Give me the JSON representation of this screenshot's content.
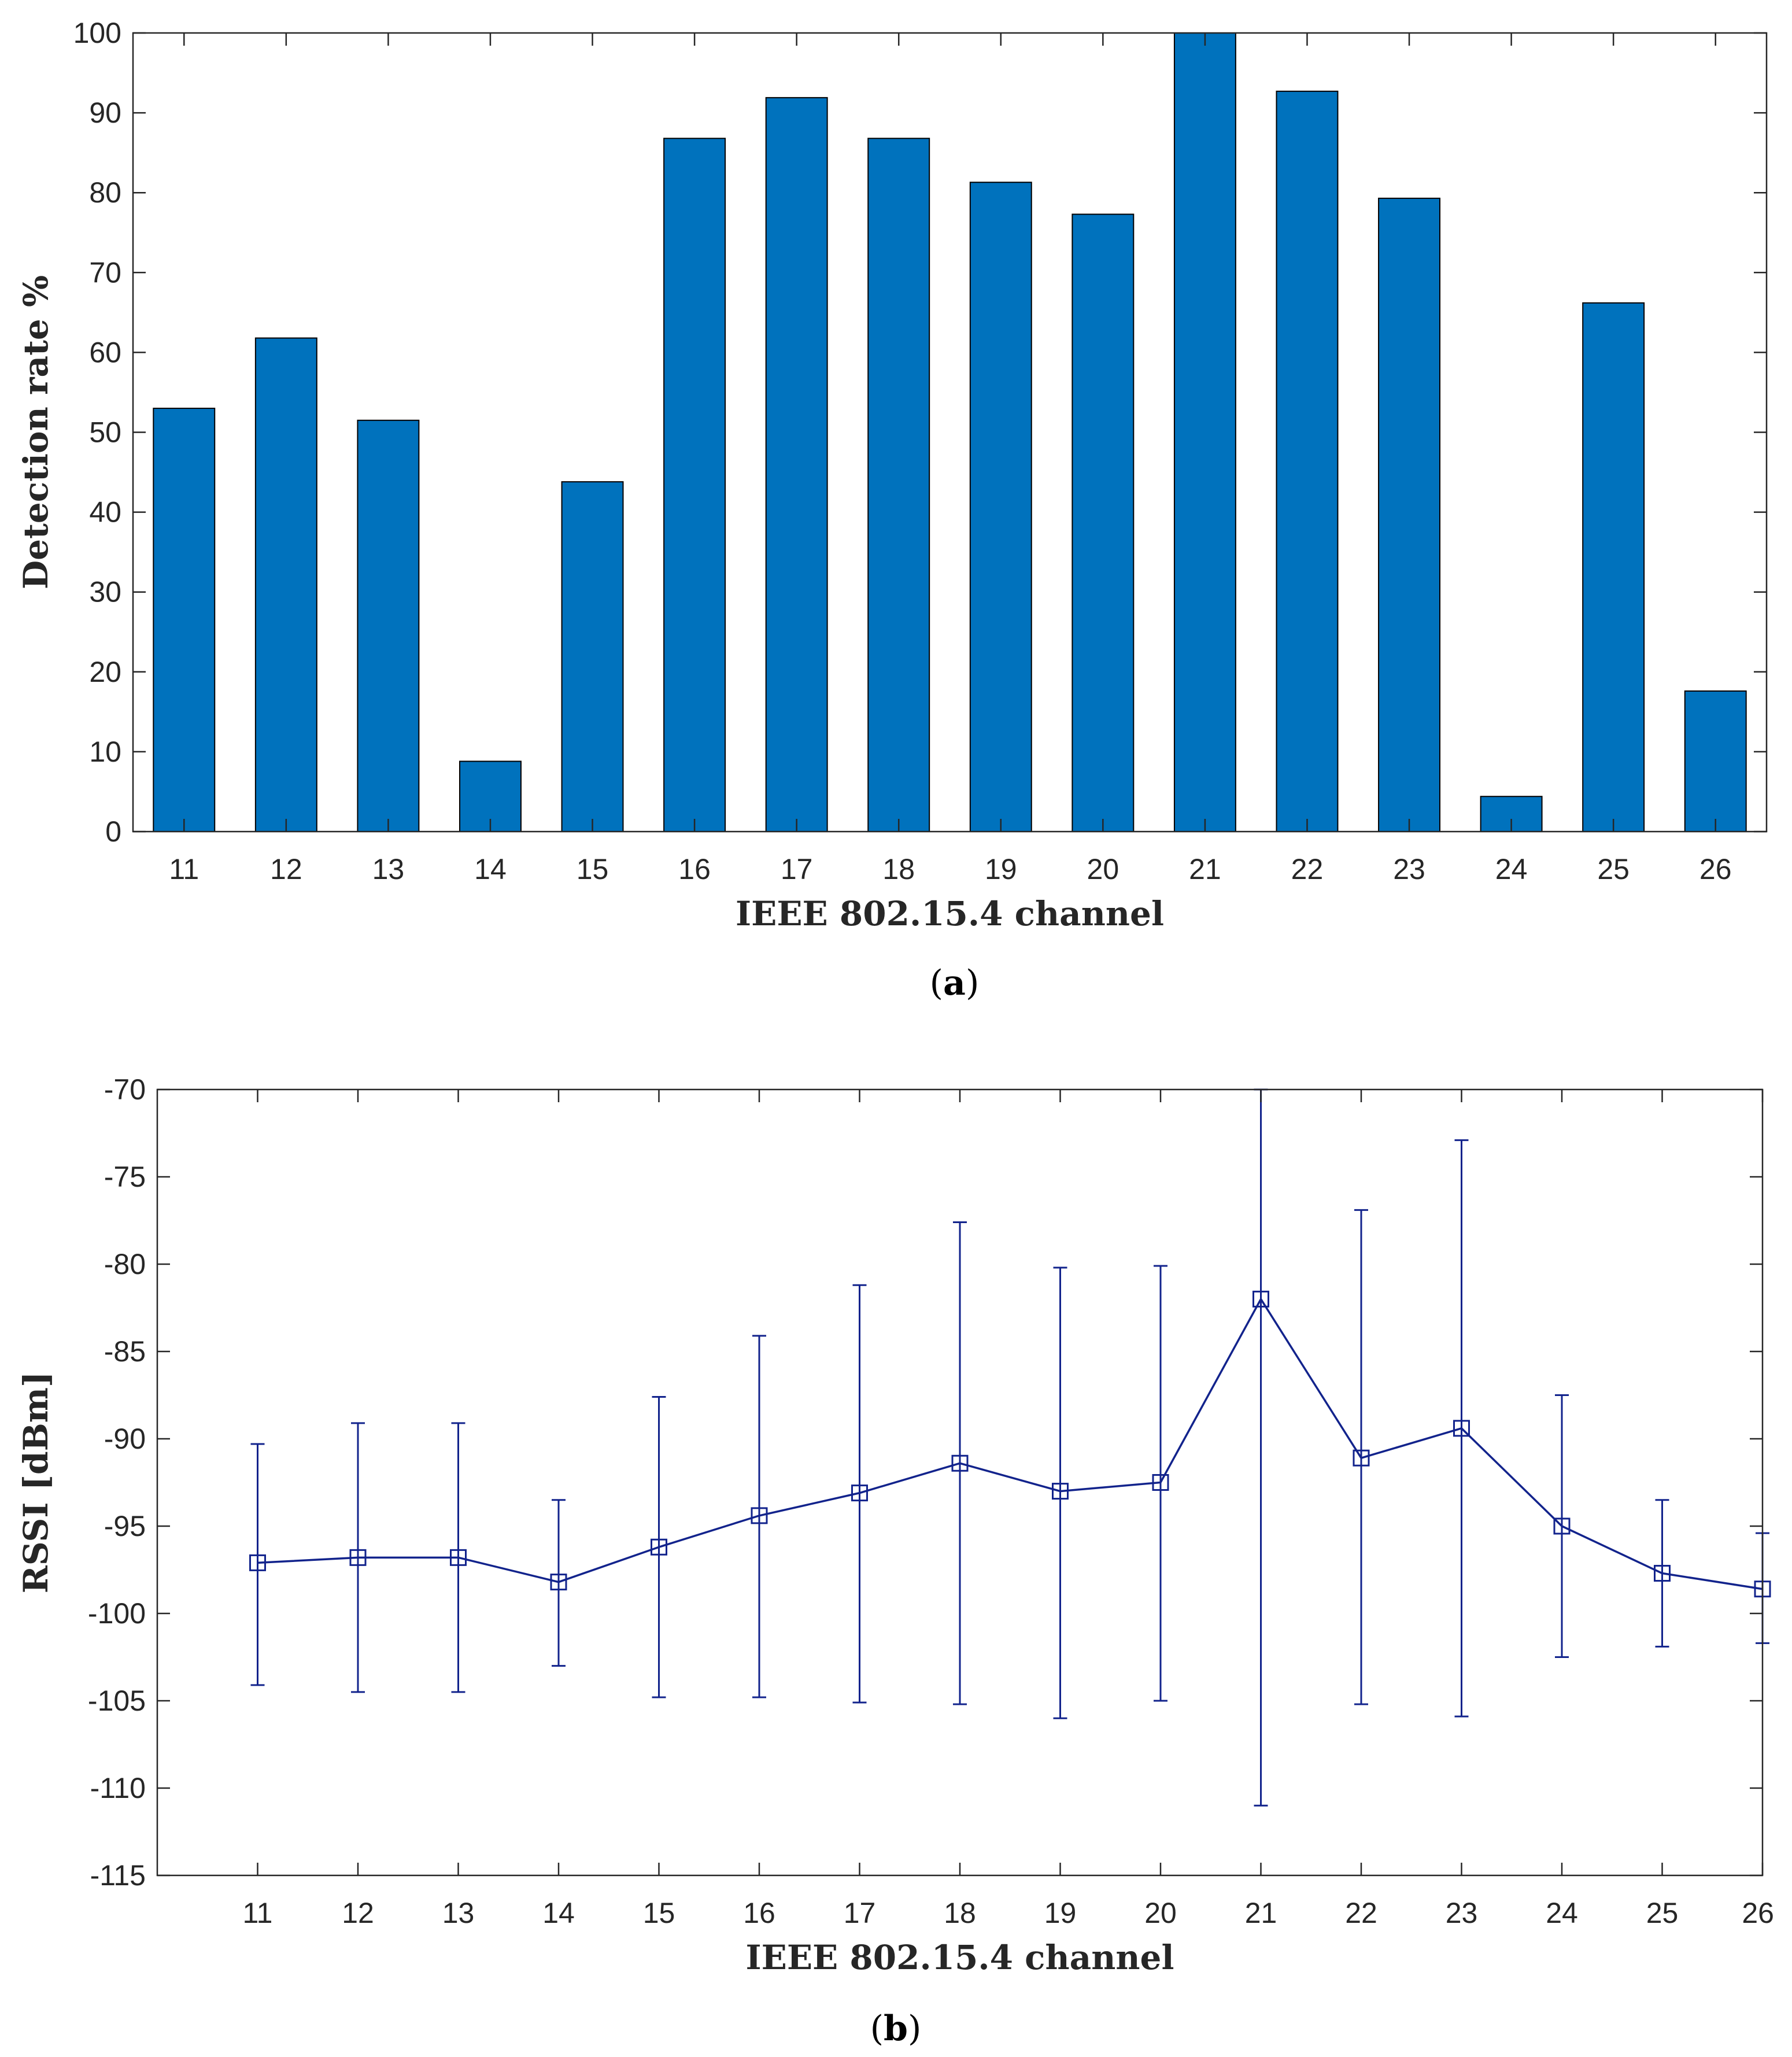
{
  "chart_data": [
    {
      "type": "bar",
      "caption": "(a)",
      "caption_letter": "a",
      "xlabel": "IEEE 802.15.4 channel",
      "ylabel": "Detection rate %",
      "categories": [
        "11",
        "12",
        "13",
        "14",
        "15",
        "16",
        "17",
        "18",
        "19",
        "20",
        "21",
        "22",
        "23",
        "24",
        "25",
        "26"
      ],
      "values": [
        53,
        61.8,
        51.5,
        8.8,
        43.8,
        86.8,
        91.9,
        86.8,
        81.3,
        77.3,
        100,
        92.7,
        79.3,
        4.4,
        66.2,
        17.6
      ],
      "ylim": [
        0,
        100
      ],
      "yticks": [
        0,
        10,
        20,
        30,
        40,
        50,
        60,
        70,
        80,
        90,
        100
      ],
      "ytick_labels": [
        "0",
        "10",
        "20",
        "30",
        "40",
        "50",
        "60",
        "70",
        "80",
        "90",
        "100"
      ],
      "bar_color": "#0072bd",
      "grid": false
    },
    {
      "type": "line",
      "caption": "(b)",
      "caption_letter": "b",
      "xlabel": "IEEE 802.15.4 channel",
      "ylabel": "RSSI [dBm]",
      "x": [
        "11",
        "12",
        "13",
        "14",
        "15",
        "16",
        "17",
        "18",
        "19",
        "20",
        "21",
        "22",
        "23",
        "24",
        "25",
        "26"
      ],
      "xlim": [
        10,
        26
      ],
      "y": [
        -97.1,
        -96.8,
        -96.8,
        -98.2,
        -96.2,
        -94.4,
        -93.1,
        -91.4,
        -93.0,
        -92.5,
        -82.0,
        -91.1,
        -89.4,
        -95.0,
        -97.7,
        -98.6
      ],
      "err_low": [
        -104.1,
        -104.5,
        -104.5,
        -103.0,
        -104.8,
        -104.8,
        -105.1,
        -105.2,
        -106.0,
        -105.0,
        -111.0,
        -105.2,
        -105.9,
        -102.5,
        -101.9,
        -101.7
      ],
      "err_high": [
        -90.3,
        -89.1,
        -89.1,
        -93.5,
        -87.6,
        -84.1,
        -81.2,
        -77.6,
        -80.2,
        -80.1,
        -70.0,
        -76.9,
        -72.9,
        -87.5,
        -93.5,
        -95.4
      ],
      "ylim": [
        -115,
        -70
      ],
      "yticks": [
        -115,
        -110,
        -105,
        -100,
        -95,
        -90,
        -85,
        -80,
        -75,
        -70
      ],
      "ytick_labels": [
        "-115",
        "-110",
        "-105",
        "-100",
        "-95",
        "-90",
        "-85",
        "-80",
        "-75",
        "-70"
      ],
      "line_color": "#12238c",
      "marker": "square",
      "grid": false
    }
  ]
}
